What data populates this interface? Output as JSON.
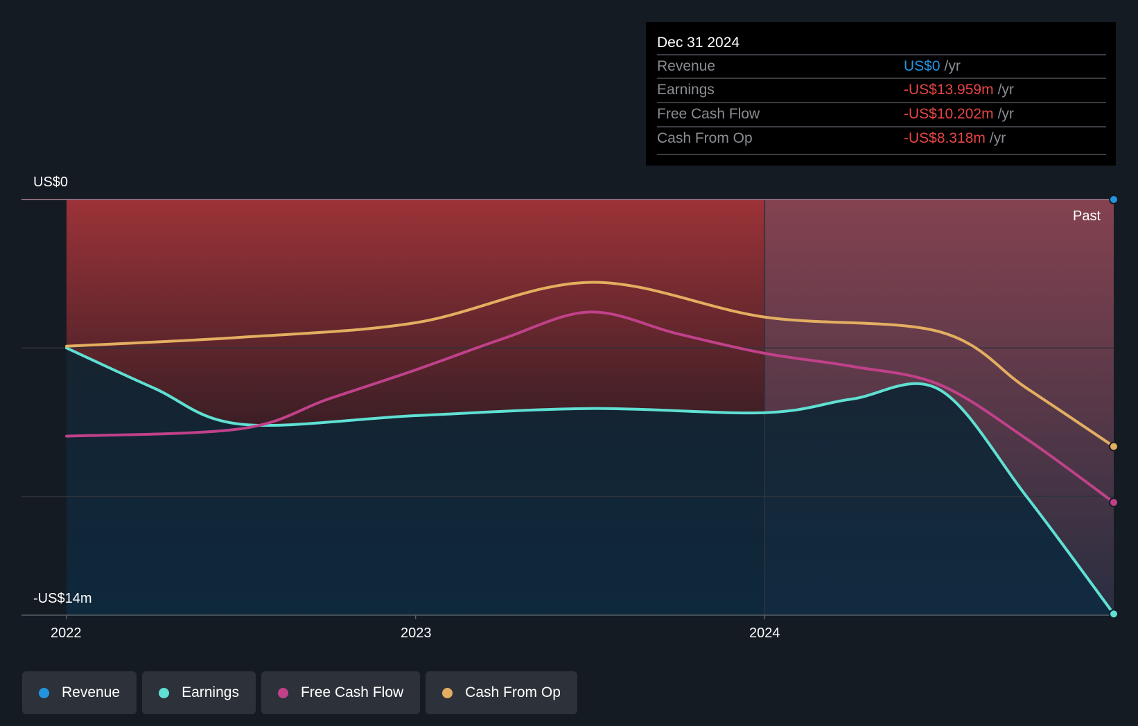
{
  "tooltip": {
    "date": "Dec 31 2024",
    "rows": [
      {
        "label": "Revenue",
        "value": "US$0",
        "unit": "/yr",
        "color": "#2394df"
      },
      {
        "label": "Earnings",
        "value": "-US$13.959m",
        "unit": "/yr",
        "color": "#e64545"
      },
      {
        "label": "Free Cash Flow",
        "value": "-US$10.202m",
        "unit": "/yr",
        "color": "#e64545"
      },
      {
        "label": "Cash From Op",
        "value": "-US$8.318m",
        "unit": "/yr",
        "color": "#e64545"
      }
    ]
  },
  "chart_data": {
    "type": "line",
    "ylabel_top": "US$0",
    "ylabel_bottom": "-US$14m",
    "ylim": [
      -14,
      0
    ],
    "xlim": [
      2022,
      2025
    ],
    "x_ticks": [
      "2022",
      "2023",
      "2024"
    ],
    "past_label": "Past",
    "grid": true,
    "series": [
      {
        "name": "Revenue",
        "color": "#2394df",
        "x": [
          2022,
          2025
        ],
        "y": [
          0,
          0
        ]
      },
      {
        "name": "Earnings",
        "color": "#5fe0d3",
        "x": [
          2022,
          2022.25,
          2022.5,
          2023,
          2023.5,
          2024,
          2024.25,
          2024.5,
          2024.75,
          2025
        ],
        "y": [
          -5.0,
          -6.35,
          -7.57,
          -7.28,
          -7.04,
          -7.18,
          -6.72,
          -6.4,
          -10.0,
          -13.959
        ]
      },
      {
        "name": "Free Cash Flow",
        "color": "#c0418a",
        "x": [
          2022,
          2022.5,
          2022.75,
          2023,
          2023.25,
          2023.5,
          2023.75,
          2024,
          2024.25,
          2024.5,
          2024.75,
          2025
        ],
        "y": [
          -7.97,
          -7.72,
          -6.72,
          -5.74,
          -4.69,
          -3.79,
          -4.52,
          -5.18,
          -5.62,
          -6.23,
          -8.06,
          -10.202
        ]
      },
      {
        "name": "Cash From Op",
        "color": "#e3ae60",
        "x": [
          2022,
          2022.5,
          2023,
          2023.5,
          2024,
          2024.5,
          2024.75,
          2025
        ],
        "y": [
          -4.94,
          -4.64,
          -4.15,
          -2.79,
          -3.96,
          -4.45,
          -6.35,
          -8.318
        ]
      }
    ]
  },
  "legend": [
    {
      "label": "Revenue",
      "color": "#2394df"
    },
    {
      "label": "Earnings",
      "color": "#5fe0d3"
    },
    {
      "label": "Free Cash Flow",
      "color": "#c0418a"
    },
    {
      "label": "Cash From Op",
      "color": "#e3ae60"
    }
  ]
}
